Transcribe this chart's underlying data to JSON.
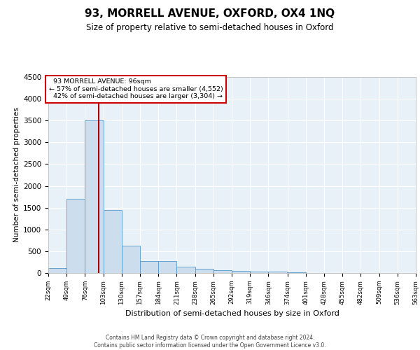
{
  "title": "93, MORRELL AVENUE, OXFORD, OX4 1NQ",
  "subtitle": "Size of property relative to semi-detached houses in Oxford",
  "xlabel": "Distribution of semi-detached houses by size in Oxford",
  "ylabel": "Number of semi-detached properties",
  "property_address": "93 MORRELL AVENUE: 96sqm",
  "pct_smaller": "57% of semi-detached houses are smaller (4,552)",
  "pct_larger": "42% of semi-detached houses are larger (3,304)",
  "property_size_sqm": 96,
  "bin_edges": [
    22,
    49,
    76,
    103,
    130,
    157,
    184,
    211,
    238,
    265,
    292,
    319,
    346,
    374,
    401,
    428,
    455,
    482,
    509,
    536,
    563
  ],
  "bin_labels": [
    "22sqm",
    "49sqm",
    "76sqm",
    "103sqm",
    "130sqm",
    "157sqm",
    "184sqm",
    "211sqm",
    "238sqm",
    "265sqm",
    "292sqm",
    "319sqm",
    "346sqm",
    "374sqm",
    "401sqm",
    "428sqm",
    "455sqm",
    "482sqm",
    "509sqm",
    "536sqm",
    "563sqm"
  ],
  "bar_heights": [
    110,
    1700,
    3500,
    1440,
    620,
    270,
    270,
    150,
    100,
    70,
    50,
    40,
    25,
    12,
    8,
    6,
    4,
    3,
    2,
    1
  ],
  "bar_color": "#ccdded",
  "bar_edge_color": "#5599cc",
  "marker_line_color": "#aa0000",
  "annotation_box_color": "#ffffff",
  "annotation_box_edge": "#cc0000",
  "background_color": "#e8f0f8",
  "grid_color": "#ffffff",
  "ylim": [
    0,
    4500
  ],
  "yticks": [
    0,
    500,
    1000,
    1500,
    2000,
    2500,
    3000,
    3500,
    4000,
    4500
  ],
  "footer_line1": "Contains HM Land Registry data © Crown copyright and database right 2024.",
  "footer_line2": "Contains public sector information licensed under the Open Government Licence v3.0."
}
